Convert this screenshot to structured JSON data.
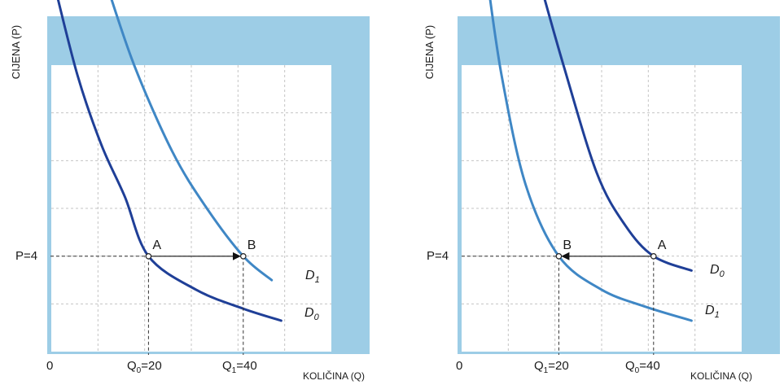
{
  "colors": {
    "frame": "#9dcde6",
    "plot_bg": "#ffffff",
    "grid": "#c4c4c4",
    "curve_d0": "#1f3f97",
    "curve_d1": "#3f87c5",
    "arrow": "#111111",
    "guide": "#333333"
  },
  "chart_data": [
    {
      "type": "line",
      "title": "",
      "xlabel": "KOLIČINA (Q)",
      "ylabel": "CIJENA (P)",
      "origin_label": "0",
      "price_label": "P=4",
      "x_tick_labels": [
        {
          "base": "Q",
          "sub": "0",
          "rest": "=20",
          "q": 20
        },
        {
          "base": "Q",
          "sub": "1",
          "rest": "=40",
          "q": 40
        }
      ],
      "series": [
        {
          "name": "D0",
          "label_base": "D",
          "label_sub": "0",
          "color_key": "curve_d0",
          "points": [
            [
              0,
              15.5
            ],
            [
              5,
              11.6
            ],
            [
              10,
              8.7
            ],
            [
              15,
              6.5
            ],
            [
              20,
              4
            ],
            [
              30,
              2.6
            ],
            [
              40,
              1.8
            ],
            [
              48,
              1.3
            ]
          ]
        },
        {
          "name": "D1",
          "label_base": "D",
          "label_sub": "1",
          "color_key": "curve_d1",
          "points": [
            [
              11,
              15.5
            ],
            [
              17,
              12
            ],
            [
              25,
              8.4
            ],
            [
              32,
              6.1
            ],
            [
              40,
              4
            ],
            [
              46,
              3
            ]
          ]
        }
      ],
      "points": [
        {
          "label": "A",
          "q": 20,
          "p": 4
        },
        {
          "label": "B",
          "q": 40,
          "p": 4
        }
      ],
      "arrow": {
        "from": "A",
        "to": "B"
      }
    },
    {
      "type": "line",
      "title": "",
      "xlabel": "KOLIČINA (Q)",
      "ylabel": "CIJENA (P)",
      "origin_label": "0",
      "price_label": "P=4",
      "x_tick_labels": [
        {
          "base": "Q",
          "sub": "1",
          "rest": "=20",
          "q": 20
        },
        {
          "base": "Q",
          "sub": "0",
          "rest": "=40",
          "q": 40
        }
      ],
      "series": [
        {
          "name": "D0",
          "label_base": "D",
          "label_sub": "0",
          "color_key": "curve_d0",
          "points": [
            [
              16,
              15.5
            ],
            [
              21,
              12
            ],
            [
              28,
              7.5
            ],
            [
              34,
              5.3
            ],
            [
              40,
              4
            ],
            [
              48,
              3.4
            ]
          ]
        },
        {
          "name": "D1",
          "label_base": "D",
          "label_sub": "1",
          "color_key": "curve_d1",
          "points": [
            [
              5,
              15.5
            ],
            [
              8,
              11.5
            ],
            [
              13,
              7
            ],
            [
              20,
              4
            ],
            [
              29,
              2.6
            ],
            [
              38,
              1.9
            ],
            [
              48,
              1.3
            ]
          ]
        }
      ],
      "points": [
        {
          "label": "B",
          "q": 20,
          "p": 4
        },
        {
          "label": "A",
          "q": 40,
          "p": 4
        }
      ],
      "arrow": {
        "from": "A",
        "to": "B"
      }
    }
  ]
}
